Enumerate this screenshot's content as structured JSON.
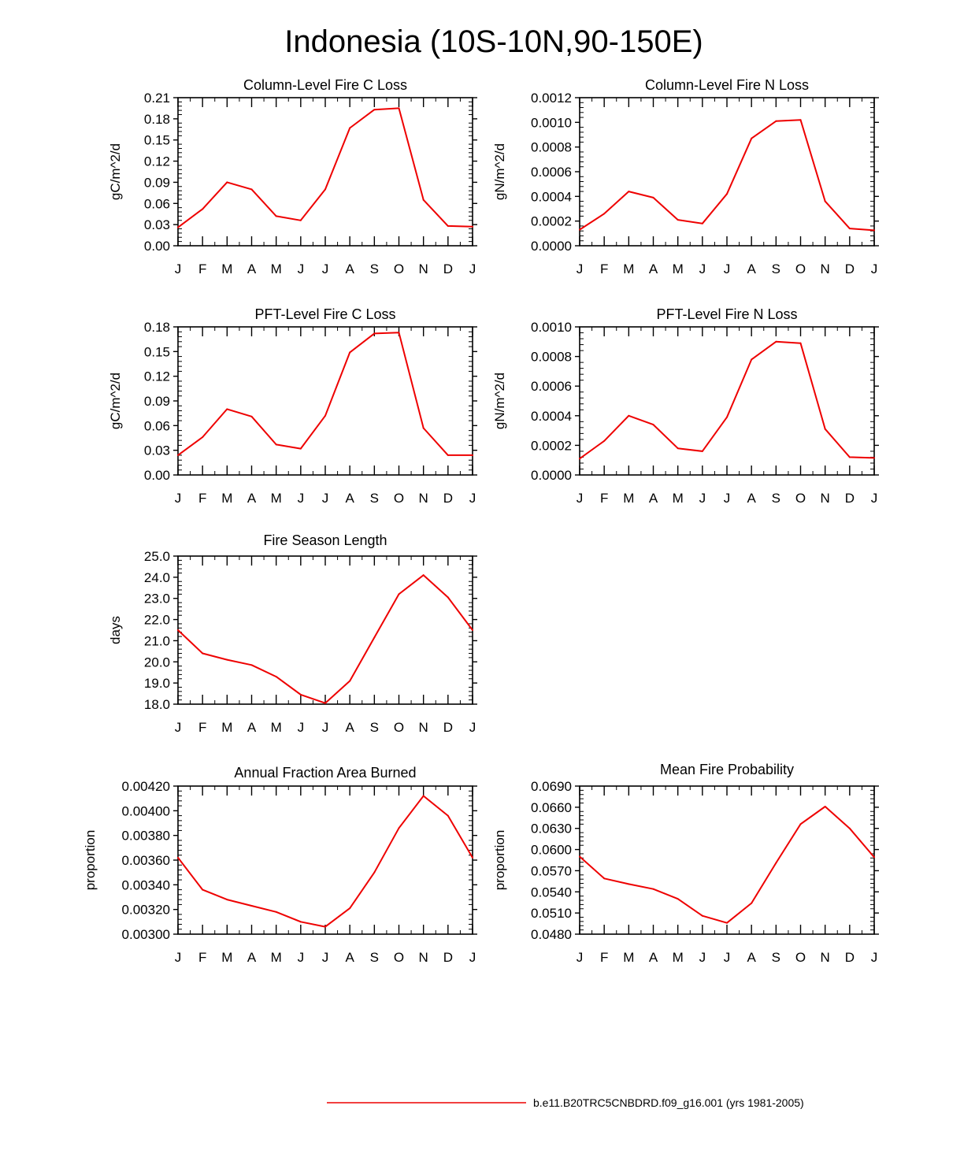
{
  "page_title": "Indonesia (10S-10N,90-150E)",
  "series_color": "#ee0000",
  "legend": {
    "label": "b.e11.B20TRC5CNBDRD.f09_g16.001 (yrs 1981-2005)"
  },
  "chart_data": [
    {
      "type": "line",
      "title": "Column-Level Fire C Loss",
      "ylabel": "gC/m^2/d",
      "categories": [
        "J",
        "F",
        "M",
        "A",
        "M",
        "J",
        "J",
        "A",
        "S",
        "O",
        "N",
        "D",
        "J"
      ],
      "ylim": [
        0,
        0.21
      ],
      "yticks": [
        "0.00",
        "0.03",
        "0.06",
        "0.09",
        "0.12",
        "0.15",
        "0.18",
        "0.21"
      ],
      "values": [
        0.026,
        0.052,
        0.09,
        0.08,
        0.042,
        0.036,
        0.08,
        0.167,
        0.193,
        0.195,
        0.065,
        0.028,
        0.027
      ]
    },
    {
      "type": "line",
      "title": "Column-Level Fire N Loss",
      "ylabel": "gN/m^2/d",
      "categories": [
        "J",
        "F",
        "M",
        "A",
        "M",
        "J",
        "J",
        "A",
        "S",
        "O",
        "N",
        "D",
        "J"
      ],
      "ylim": [
        0,
        0.0012
      ],
      "yticks": [
        "0.0000",
        "0.0002",
        "0.0004",
        "0.0006",
        "0.0008",
        "0.0010",
        "0.0012"
      ],
      "values": [
        0.00013,
        0.00026,
        0.00044,
        0.00039,
        0.00021,
        0.00018,
        0.00042,
        0.00087,
        0.00101,
        0.00102,
        0.00036,
        0.00014,
        0.000125
      ]
    },
    {
      "type": "line",
      "title": "PFT-Level Fire C Loss",
      "ylabel": "gC/m^2/d",
      "categories": [
        "J",
        "F",
        "M",
        "A",
        "M",
        "J",
        "J",
        "A",
        "S",
        "O",
        "N",
        "D",
        "J"
      ],
      "ylim": [
        0,
        0.18
      ],
      "yticks": [
        "0.00",
        "0.03",
        "0.06",
        "0.09",
        "0.12",
        "0.15",
        "0.18"
      ],
      "values": [
        0.024,
        0.046,
        0.08,
        0.071,
        0.037,
        0.032,
        0.072,
        0.149,
        0.172,
        0.173,
        0.057,
        0.024,
        0.024
      ]
    },
    {
      "type": "line",
      "title": "PFT-Level Fire N Loss",
      "ylabel": "gN/m^2/d",
      "categories": [
        "J",
        "F",
        "M",
        "A",
        "M",
        "J",
        "J",
        "A",
        "S",
        "O",
        "N",
        "D",
        "J"
      ],
      "ylim": [
        0,
        0.001
      ],
      "yticks": [
        "0.0000",
        "0.0002",
        "0.0004",
        "0.0006",
        "0.0008",
        "0.0010"
      ],
      "values": [
        0.00011,
        0.00023,
        0.0004,
        0.00034,
        0.00018,
        0.00016,
        0.00039,
        0.00078,
        0.0009,
        0.00089,
        0.00031,
        0.00012,
        0.000115
      ]
    },
    {
      "type": "line",
      "title": "Fire Season Length",
      "ylabel": "days",
      "categories": [
        "J",
        "F",
        "M",
        "A",
        "M",
        "J",
        "J",
        "A",
        "S",
        "O",
        "N",
        "D",
        "J"
      ],
      "ylim": [
        18,
        25
      ],
      "yticks": [
        "18.0",
        "19.0",
        "20.0",
        "21.0",
        "22.0",
        "23.0",
        "24.0",
        "25.0"
      ],
      "values": [
        21.5,
        20.4,
        20.1,
        19.85,
        19.3,
        18.45,
        18.05,
        19.1,
        21.15,
        23.2,
        24.1,
        23.05,
        21.5
      ]
    },
    {
      "type": "line",
      "title": "Annual Fraction Area Burned",
      "ylabel": "proportion",
      "categories": [
        "J",
        "F",
        "M",
        "A",
        "M",
        "J",
        "J",
        "A",
        "S",
        "O",
        "N",
        "D",
        "J"
      ],
      "ylim": [
        0.003,
        0.0042
      ],
      "yticks": [
        "0.00300",
        "0.00320",
        "0.00340",
        "0.00360",
        "0.00380",
        "0.00400",
        "0.00420"
      ],
      "values": [
        0.00362,
        0.00336,
        0.00328,
        0.00323,
        0.00318,
        0.0031,
        0.00306,
        0.00321,
        0.0035,
        0.00386,
        0.00412,
        0.00396,
        0.00362
      ]
    },
    {
      "type": "line",
      "title": "Mean Fire Probability",
      "ylabel": "proportion",
      "categories": [
        "J",
        "F",
        "M",
        "A",
        "M",
        "J",
        "J",
        "A",
        "S",
        "O",
        "N",
        "D",
        "J"
      ],
      "ylim": [
        0.048,
        0.069
      ],
      "yticks": [
        "0.0480",
        "0.0510",
        "0.0540",
        "0.0570",
        "0.0600",
        "0.0630",
        "0.0660",
        "0.0690"
      ],
      "values": [
        0.059,
        0.0559,
        0.0551,
        0.0544,
        0.053,
        0.0506,
        0.0496,
        0.0524,
        0.0581,
        0.0636,
        0.0661,
        0.063,
        0.0589
      ]
    }
  ]
}
